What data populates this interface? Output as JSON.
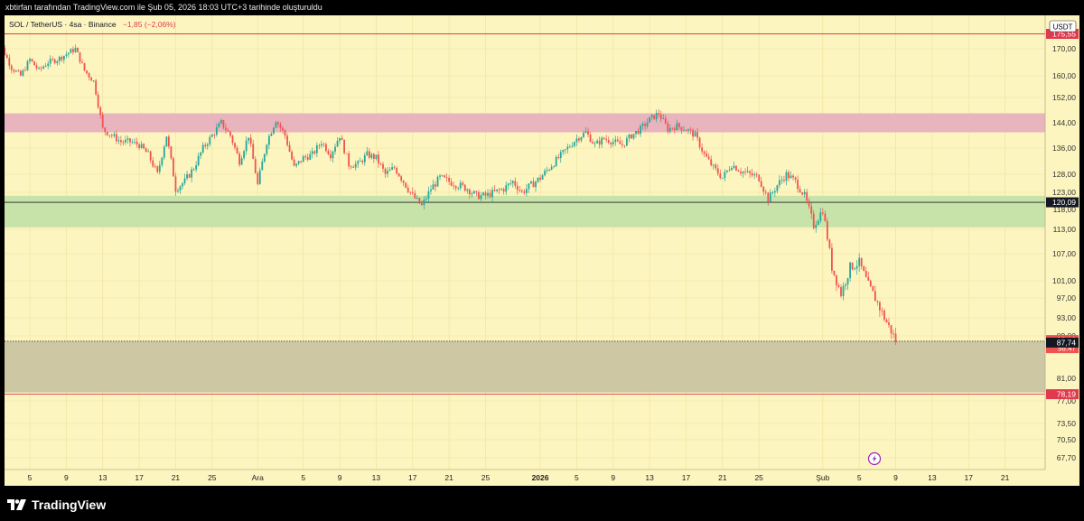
{
  "header": {
    "attribution": "xbtirfan tarafından TradingView.com ile Şub 05, 2026 18:03 UTC+3 tarihinde oluşturuldu"
  },
  "chart_data": {
    "type": "candlestick",
    "symbol": "SOL / TetherUS · 4sa · Binance",
    "change": "−1,85 (−2,06%)",
    "currency": "USDT",
    "y_ticks": [
      {
        "v": 170,
        "label": "170,00"
      },
      {
        "v": 160,
        "label": "160,00"
      },
      {
        "v": 152,
        "label": "152,00"
      },
      {
        "v": 144,
        "label": "144,00"
      },
      {
        "v": 136,
        "label": "136,00"
      },
      {
        "v": 128,
        "label": "128,00"
      },
      {
        "v": 123,
        "label": "123,00"
      },
      {
        "v": 118,
        "label": "118,00"
      },
      {
        "v": 113,
        "label": "113,00"
      },
      {
        "v": 107,
        "label": "107,00"
      },
      {
        "v": 101,
        "label": "101,00"
      },
      {
        "v": 97,
        "label": "97,00"
      },
      {
        "v": 93,
        "label": "93,00"
      },
      {
        "v": 89,
        "label": "89,00"
      },
      {
        "v": 81,
        "label": "81,00"
      },
      {
        "v": 77,
        "label": "77,00"
      },
      {
        "v": 73.5,
        "label": "73,50"
      },
      {
        "v": 70.5,
        "label": "70,50"
      },
      {
        "v": 67.7,
        "label": "67,70"
      }
    ],
    "price_labels": [
      {
        "v": 175.5,
        "label": "175,55",
        "color": "#e03a4e",
        "text_color": "#ffffff"
      },
      {
        "v": 120.09,
        "label": "120,09",
        "color": "#131722",
        "text_color": "#ffffff"
      },
      {
        "v": 88.13,
        "label": "88,13",
        "sub": "56:47",
        "color": "#ef5350",
        "text_color": "#ffffff"
      },
      {
        "v": 87.74,
        "label": "87,74",
        "color": "#131722",
        "text_color": "#ffffff"
      },
      {
        "v": 78.19,
        "label": "78,19",
        "color": "#e03a4e",
        "text_color": "#ffffff"
      }
    ],
    "x_ticks": [
      {
        "d": 5,
        "label": "5"
      },
      {
        "d": 9,
        "label": "9"
      },
      {
        "d": 13,
        "label": "13"
      },
      {
        "d": 17,
        "label": "17"
      },
      {
        "d": 21,
        "label": "21"
      },
      {
        "d": 25,
        "label": "25"
      },
      {
        "d": 30,
        "label": "Ara"
      },
      {
        "d": 35,
        "label": "5"
      },
      {
        "d": 39,
        "label": "9"
      },
      {
        "d": 43,
        "label": "13"
      },
      {
        "d": 47,
        "label": "17"
      },
      {
        "d": 51,
        "label": "21"
      },
      {
        "d": 55,
        "label": "25"
      },
      {
        "d": 61,
        "label": "2026",
        "bold": true
      },
      {
        "d": 65,
        "label": "5"
      },
      {
        "d": 69,
        "label": "9"
      },
      {
        "d": 73,
        "label": "13"
      },
      {
        "d": 77,
        "label": "17"
      },
      {
        "d": 81,
        "label": "21"
      },
      {
        "d": 85,
        "label": "25"
      },
      {
        "d": 92,
        "label": "Şub"
      },
      {
        "d": 96,
        "label": "5"
      },
      {
        "d": 100,
        "label": "9"
      },
      {
        "d": 104,
        "label": "13"
      },
      {
        "d": 108,
        "label": "17"
      },
      {
        "d": 112,
        "label": "21"
      }
    ],
    "zones": [
      {
        "name": "resistance",
        "top": 147,
        "bottom": 141,
        "color": "#e8b4bd"
      },
      {
        "name": "support",
        "top": 122,
        "bottom": 113.5,
        "color": "#c8e3a9"
      },
      {
        "name": "demand",
        "top": 88,
        "bottom": 78.5,
        "color": "#cdc8a3"
      }
    ],
    "lines": [
      {
        "v": 175.5,
        "color": "#e03a4e"
      },
      {
        "v": 120.09,
        "color": "#222222"
      },
      {
        "v": 88,
        "color": "#555555"
      },
      {
        "v": 78.19,
        "color": "#e03a4e"
      }
    ],
    "path": [
      [
        1,
        178
      ],
      [
        2,
        170
      ],
      [
        3,
        163
      ],
      [
        4,
        160
      ],
      [
        5,
        166
      ],
      [
        6,
        162
      ],
      [
        7,
        165
      ],
      [
        8,
        166
      ],
      [
        9,
        168
      ],
      [
        10,
        170
      ],
      [
        11,
        162
      ],
      [
        12,
        158
      ],
      [
        13,
        142
      ],
      [
        14,
        140
      ],
      [
        15,
        138
      ],
      [
        16,
        138
      ],
      [
        17,
        137
      ],
      [
        18,
        134
      ],
      [
        19,
        128
      ],
      [
        20,
        140
      ],
      [
        21,
        124
      ],
      [
        22,
        126
      ],
      [
        23,
        130
      ],
      [
        24,
        136
      ],
      [
        25,
        140
      ],
      [
        26,
        144
      ],
      [
        27,
        140
      ],
      [
        28,
        132
      ],
      [
        29,
        140
      ],
      [
        30,
        125
      ],
      [
        31,
        138
      ],
      [
        32,
        145
      ],
      [
        33,
        140
      ],
      [
        34,
        130
      ],
      [
        35,
        133
      ],
      [
        36,
        134
      ],
      [
        37,
        138
      ],
      [
        38,
        134
      ],
      [
        39,
        140
      ],
      [
        40,
        131
      ],
      [
        41,
        131
      ],
      [
        42,
        134
      ],
      [
        43,
        133
      ],
      [
        44,
        128
      ],
      [
        45,
        130
      ],
      [
        46,
        126
      ],
      [
        47,
        122
      ],
      [
        48,
        119
      ],
      [
        49,
        124
      ],
      [
        50,
        127
      ],
      [
        51,
        126
      ],
      [
        52,
        125
      ],
      [
        53,
        124
      ],
      [
        54,
        122
      ],
      [
        55,
        122
      ],
      [
        56,
        123
      ],
      [
        57,
        124
      ],
      [
        58,
        126
      ],
      [
        59,
        123
      ],
      [
        60,
        125
      ],
      [
        61,
        127
      ],
      [
        62,
        130
      ],
      [
        63,
        133
      ],
      [
        64,
        136
      ],
      [
        65,
        139
      ],
      [
        66,
        141
      ],
      [
        67,
        137
      ],
      [
        68,
        139
      ],
      [
        69,
        138
      ],
      [
        70,
        137
      ],
      [
        71,
        140
      ],
      [
        72,
        142
      ],
      [
        73,
        145
      ],
      [
        74,
        147
      ],
      [
        75,
        142
      ],
      [
        76,
        143
      ],
      [
        77,
        142
      ],
      [
        78,
        140
      ],
      [
        79,
        134
      ],
      [
        80,
        130
      ],
      [
        81,
        127
      ],
      [
        82,
        131
      ],
      [
        83,
        129
      ],
      [
        84,
        128
      ],
      [
        85,
        127
      ],
      [
        86,
        121
      ],
      [
        87,
        125
      ],
      [
        88,
        128
      ],
      [
        89,
        126
      ],
      [
        90,
        122
      ],
      [
        91,
        114
      ],
      [
        92,
        118
      ],
      [
        93,
        104
      ],
      [
        94,
        98
      ],
      [
        95,
        104
      ],
      [
        96,
        105
      ],
      [
        97,
        100
      ],
      [
        98,
        96
      ],
      [
        99,
        92
      ],
      [
        100,
        88.1
      ]
    ]
  },
  "footer": {
    "brand": "TradingView"
  }
}
